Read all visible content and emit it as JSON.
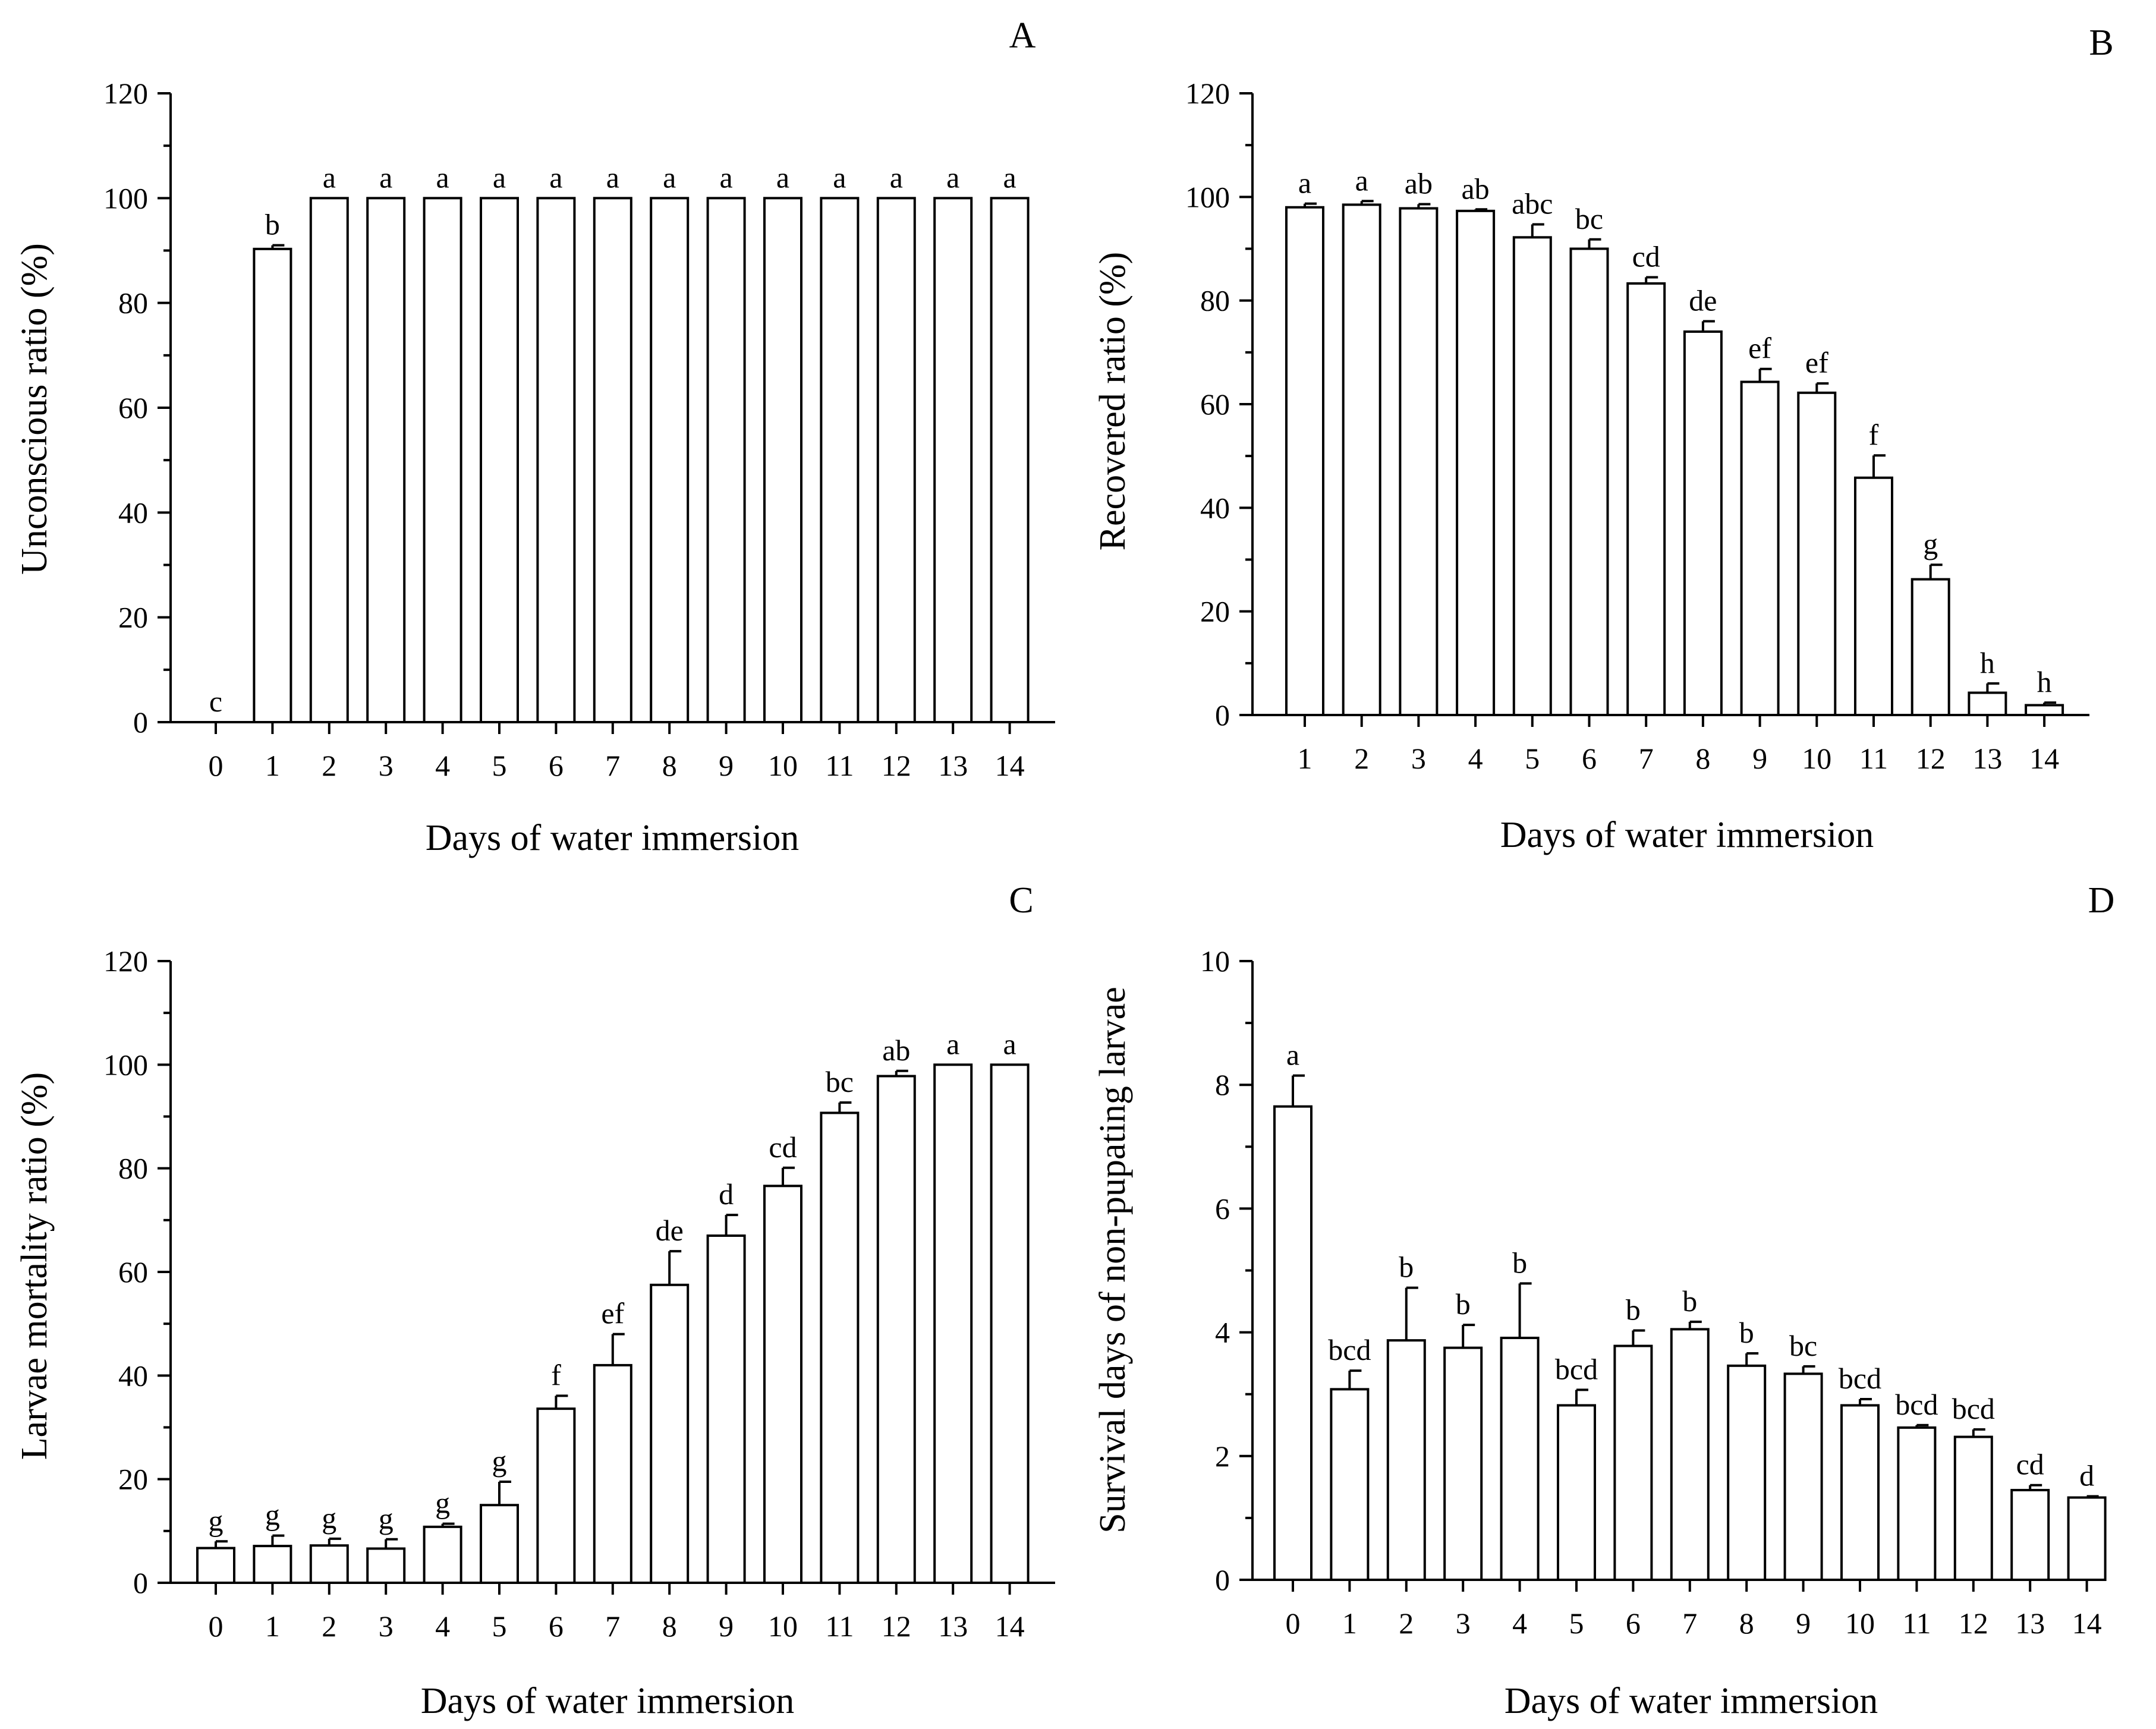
{
  "chart_data": [
    {
      "type": "bar",
      "panel": "A",
      "xlabel": "Days of water immersion",
      "ylabel": "Unconscious ratio (%)",
      "ylim": [
        0,
        120
      ],
      "yticks": [
        0,
        20,
        40,
        60,
        80,
        100,
        120
      ],
      "categories": [
        "0",
        "1",
        "2",
        "3",
        "4",
        "5",
        "6",
        "7",
        "8",
        "9",
        "10",
        "11",
        "12",
        "13",
        "14"
      ],
      "values": [
        0,
        90.3,
        100,
        100,
        100,
        100,
        100,
        100,
        100,
        100,
        100,
        100,
        100,
        100,
        100
      ],
      "errors": [
        0,
        0.7,
        0,
        0,
        0,
        0,
        0,
        0,
        0,
        0,
        0,
        0,
        0,
        0,
        0
      ],
      "labels": [
        "c",
        "b",
        "a",
        "a",
        "a",
        "a",
        "a",
        "a",
        "a",
        "a",
        "a",
        "a",
        "a",
        "a",
        "a"
      ]
    },
    {
      "type": "bar",
      "panel": "B",
      "xlabel": "Days of water immersion",
      "ylabel": "Recovered ratio (%)",
      "ylim": [
        0,
        120
      ],
      "yticks": [
        0,
        20,
        40,
        60,
        80,
        100,
        120
      ],
      "categories": [
        "1",
        "2",
        "3",
        "4",
        "5",
        "6",
        "7",
        "8",
        "9",
        "10",
        "11",
        "12",
        "13",
        "14"
      ],
      "values": [
        98.0,
        98.5,
        97.8,
        97.3,
        92.2,
        90.0,
        83.3,
        74.0,
        64.3,
        62.2,
        45.8,
        26.2,
        4.3,
        1.9
      ],
      "errors": [
        0.7,
        0.7,
        0.8,
        0.3,
        2.5,
        1.8,
        1.2,
        2.0,
        2.5,
        1.8,
        4.3,
        2.8,
        1.8,
        0.5
      ],
      "labels": [
        "a",
        "a",
        "ab",
        "ab",
        "abc",
        "bc",
        "cd",
        "de",
        "ef",
        "ef",
        "f",
        "g",
        "h",
        "h"
      ]
    },
    {
      "type": "bar",
      "panel": "C",
      "xlabel": "Days of water immersion",
      "ylabel": "Larvae mortality ratio (%)",
      "ylim": [
        0,
        120
      ],
      "yticks": [
        0,
        20,
        40,
        60,
        80,
        100,
        120
      ],
      "categories": [
        "0",
        "1",
        "2",
        "3",
        "4",
        "5",
        "6",
        "7",
        "8",
        "9",
        "10",
        "11",
        "12",
        "13",
        "14"
      ],
      "values": [
        6.7,
        7.1,
        7.2,
        6.6,
        10.8,
        15.0,
        33.6,
        42.0,
        57.5,
        67.0,
        76.6,
        90.7,
        97.8,
        100,
        100
      ],
      "errors": [
        1.3,
        2.0,
        1.3,
        1.8,
        0.6,
        4.5,
        2.5,
        6.0,
        6.5,
        4.0,
        3.5,
        2.0,
        1.0,
        0,
        0
      ],
      "labels": [
        "g",
        "g",
        "g",
        "g",
        "g",
        "g",
        "f",
        "ef",
        "de",
        "d",
        "cd",
        "bc",
        "ab",
        "a",
        "a"
      ]
    },
    {
      "type": "bar",
      "panel": "D",
      "xlabel": "Days of water immersion",
      "ylabel": "Survival days of non-pupating larvae",
      "ylim": [
        0,
        10
      ],
      "yticks": [
        0,
        2,
        4,
        6,
        8,
        10
      ],
      "categories": [
        "0",
        "1",
        "2",
        "3",
        "4",
        "5",
        "6",
        "7",
        "8",
        "9",
        "10",
        "11",
        "12",
        "13",
        "14"
      ],
      "values": [
        7.65,
        3.08,
        3.87,
        3.75,
        3.91,
        2.82,
        3.78,
        4.05,
        3.46,
        3.33,
        2.82,
        2.46,
        2.31,
        1.45,
        1.33
      ],
      "errors": [
        0.5,
        0.3,
        0.85,
        0.37,
        0.88,
        0.25,
        0.25,
        0.12,
        0.2,
        0.12,
        0.1,
        0.04,
        0.12,
        0.08,
        0.02
      ],
      "labels": [
        "a",
        "bcd",
        "b",
        "b",
        "b",
        "bcd",
        "b",
        "b",
        "b",
        "bc",
        "bcd",
        "bcd",
        "bcd",
        "cd",
        "d"
      ]
    }
  ]
}
